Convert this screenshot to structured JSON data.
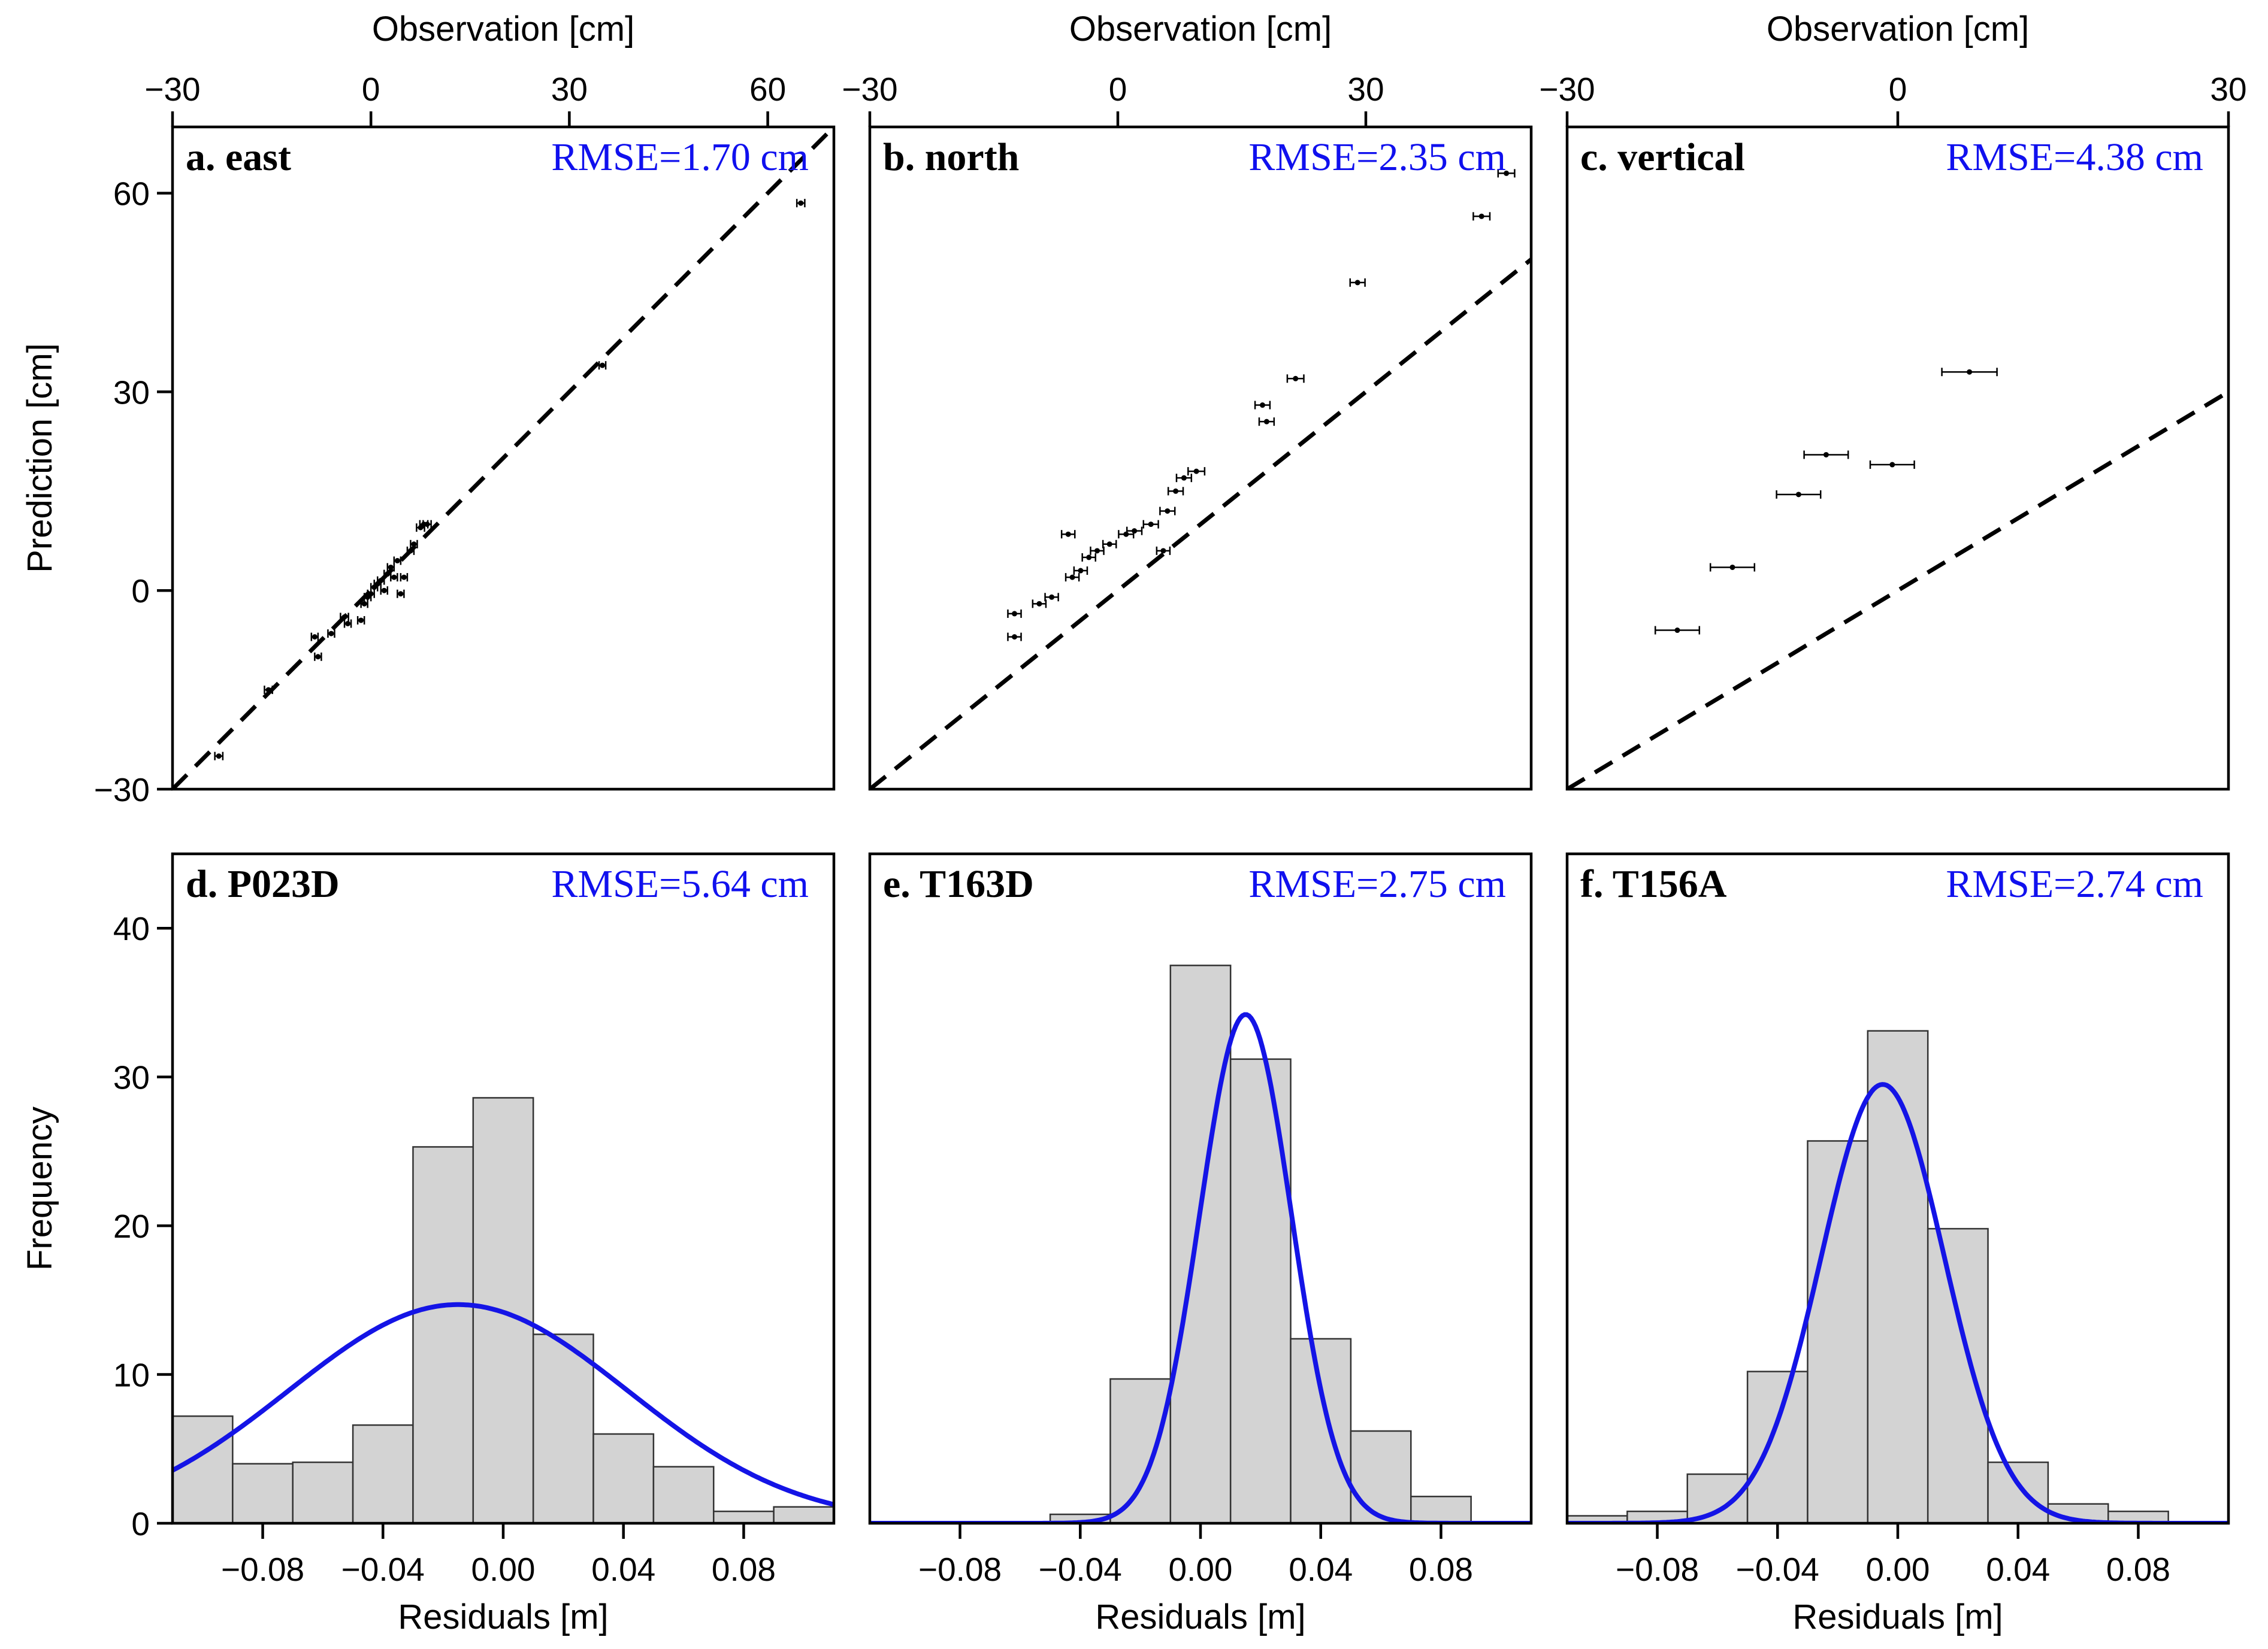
{
  "colors": {
    "fit": "#1414e6",
    "bar_fill": "#d3d3d3",
    "bar_stroke": "#333333",
    "axis": "#000000"
  },
  "chart_data": [
    {
      "id": "a",
      "type": "scatter",
      "title": "a. east",
      "rmse": "RMSE=1.70 cm",
      "xlabel": "Observation [cm]",
      "ylabel": "Prediction [cm]",
      "xlim": [
        -30,
        70
      ],
      "ylim": [
        -30,
        70
      ],
      "xticks": [
        -30,
        0,
        30,
        60
      ],
      "xtick_labels": [
        "−30",
        "0",
        "30",
        "60"
      ],
      "yticks": [
        -30,
        0,
        30,
        60
      ],
      "ytick_labels": [
        "−30",
        "0",
        "30",
        "60"
      ],
      "reference_line": "1:1 dashed",
      "points": [
        {
          "x": 65,
          "y": 58.5,
          "err": 0.6
        },
        {
          "x": 35,
          "y": 34,
          "err": 0.5
        },
        {
          "x": -23,
          "y": -25,
          "err": 0.6
        },
        {
          "x": -15.5,
          "y": -15,
          "err": 0.6
        },
        {
          "x": -8.5,
          "y": -7,
          "err": 0.5
        },
        {
          "x": -8,
          "y": -10,
          "err": 0.5
        },
        {
          "x": -6,
          "y": -6.5,
          "err": 0.5
        },
        {
          "x": -4,
          "y": -4,
          "err": 0.6
        },
        {
          "x": -3.5,
          "y": -5,
          "err": 0.5
        },
        {
          "x": -1.5,
          "y": -4.5,
          "err": 0.5
        },
        {
          "x": -1,
          "y": -2,
          "err": 0.5
        },
        {
          "x": -0.5,
          "y": -1,
          "err": 0.5
        },
        {
          "x": 0,
          "y": -0.5,
          "err": 0.5
        },
        {
          "x": 0.5,
          "y": 0.5,
          "err": 0.5
        },
        {
          "x": 1,
          "y": 1,
          "err": 0.5
        },
        {
          "x": 1.5,
          "y": 1.5,
          "err": 0.5
        },
        {
          "x": 2,
          "y": 0,
          "err": 0.5
        },
        {
          "x": 2.5,
          "y": 2.5,
          "err": 0.5
        },
        {
          "x": 3,
          "y": 3.5,
          "err": 0.5
        },
        {
          "x": 3.5,
          "y": 2,
          "err": 0.5
        },
        {
          "x": 4,
          "y": 4.5,
          "err": 0.5
        },
        {
          "x": 4.5,
          "y": -0.5,
          "err": 0.5
        },
        {
          "x": 5,
          "y": 2,
          "err": 0.5
        },
        {
          "x": 6,
          "y": 6,
          "err": 0.5
        },
        {
          "x": 6.5,
          "y": 7,
          "err": 0.5
        },
        {
          "x": 7.5,
          "y": 9.5,
          "err": 0.6
        },
        {
          "x": 8,
          "y": 10,
          "err": 0.6
        },
        {
          "x": 8.5,
          "y": 10,
          "err": 0.6
        }
      ]
    },
    {
      "id": "b",
      "type": "scatter",
      "title": "b. north",
      "rmse": "RMSE=2.35 cm",
      "xlabel": "Observation [cm]",
      "ylabel": "",
      "xlim": [
        -30,
        50
      ],
      "ylim": [
        -30,
        70
      ],
      "xticks": [
        -30,
        0,
        30
      ],
      "xtick_labels": [
        "−30",
        "0",
        "30"
      ],
      "yticks": [],
      "ytick_labels": [],
      "reference_line": "1:1 dashed",
      "points": [
        {
          "x": 47,
          "y": 63,
          "err": 1.0
        },
        {
          "x": 44,
          "y": 56.5,
          "err": 1.0
        },
        {
          "x": 29,
          "y": 46.5,
          "err": 0.9
        },
        {
          "x": 21.5,
          "y": 32,
          "err": 1.0
        },
        {
          "x": 17.5,
          "y": 28,
          "err": 0.9
        },
        {
          "x": 18,
          "y": 25.5,
          "err": 0.9
        },
        {
          "x": 9.5,
          "y": 18,
          "err": 1.0
        },
        {
          "x": 8,
          "y": 17,
          "err": 0.9
        },
        {
          "x": 7,
          "y": 15,
          "err": 0.9
        },
        {
          "x": 6,
          "y": 12,
          "err": 0.9
        },
        {
          "x": 5.5,
          "y": 6,
          "err": 0.8
        },
        {
          "x": 4,
          "y": 10,
          "err": 0.9
        },
        {
          "x": 2,
          "y": 9,
          "err": 0.9
        },
        {
          "x": 1,
          "y": 8.5,
          "err": 0.9
        },
        {
          "x": -1,
          "y": 7,
          "err": 0.8
        },
        {
          "x": -2.5,
          "y": 6,
          "err": 0.8
        },
        {
          "x": -3.5,
          "y": 5,
          "err": 0.8
        },
        {
          "x": -4.5,
          "y": 3,
          "err": 0.8
        },
        {
          "x": -5.5,
          "y": 2,
          "err": 0.8
        },
        {
          "x": -6,
          "y": 8.5,
          "err": 0.8
        },
        {
          "x": -8,
          "y": -1,
          "err": 0.8
        },
        {
          "x": -9.5,
          "y": -2,
          "err": 0.8
        },
        {
          "x": -12.5,
          "y": -3.5,
          "err": 0.8
        },
        {
          "x": -12.5,
          "y": -7,
          "err": 0.8
        }
      ]
    },
    {
      "id": "c",
      "type": "scatter",
      "title": "c. vertical",
      "rmse": "RMSE=4.38 cm",
      "xlabel": "Observation [cm]",
      "ylabel": "",
      "xlim": [
        -30,
        30
      ],
      "ylim": [
        -30,
        70
      ],
      "xticks": [
        -30,
        0,
        30
      ],
      "xtick_labels": [
        "−30",
        "0",
        "30"
      ],
      "yticks": [],
      "ytick_labels": [],
      "reference_line": "1:1 dashed",
      "points": [
        {
          "x": 6.5,
          "y": 33,
          "err": 2.5
        },
        {
          "x": -6.5,
          "y": 20.5,
          "err": 2.0
        },
        {
          "x": -0.5,
          "y": 19,
          "err": 2.0
        },
        {
          "x": -9,
          "y": 14.5,
          "err": 2.0
        },
        {
          "x": -15,
          "y": 3.5,
          "err": 2.0
        },
        {
          "x": -20,
          "y": -6,
          "err": 2.0
        }
      ]
    },
    {
      "id": "d",
      "type": "bar",
      "title": "d. P023D",
      "rmse": "RMSE=5.64 cm",
      "xlabel": "Residuals [m]",
      "ylabel": "Frequency",
      "xlim": [
        -0.11,
        0.11
      ],
      "ylim": [
        0,
        45
      ],
      "xticks": [
        -0.08,
        -0.04,
        0.0,
        0.04,
        0.08
      ],
      "xtick_labels": [
        "−0.08",
        "−0.04",
        "0.00",
        "0.04",
        "0.08"
      ],
      "yticks": [
        0,
        10,
        20,
        30,
        40
      ],
      "ytick_labels": [
        "0",
        "10",
        "20",
        "30",
        "40"
      ],
      "bin_edges": [
        -0.11,
        -0.09,
        -0.07,
        -0.05,
        -0.03,
        -0.01,
        0.01,
        0.03,
        0.05,
        0.07,
        0.09,
        0.11
      ],
      "values": [
        7.2,
        4.0,
        4.1,
        6.6,
        25.3,
        28.6,
        12.7,
        6.0,
        3.8,
        0.8,
        1.1
      ],
      "fit": {
        "mean": -0.015,
        "sd": 0.0564,
        "peak": 14.7
      }
    },
    {
      "id": "e",
      "type": "bar",
      "title": "e. T163D",
      "rmse": "RMSE=2.75 cm",
      "xlabel": "Residuals [m]",
      "ylabel": "",
      "xlim": [
        -0.11,
        0.11
      ],
      "ylim": [
        0,
        45
      ],
      "xticks": [
        -0.08,
        -0.04,
        0.0,
        0.04,
        0.08
      ],
      "xtick_labels": [
        "−0.08",
        "−0.04",
        "0.00",
        "0.04",
        "0.08"
      ],
      "yticks": [],
      "ytick_labels": [],
      "bin_edges": [
        -0.05,
        -0.03,
        -0.01,
        0.01,
        0.03,
        0.05,
        0.07,
        0.09
      ],
      "values": [
        0.6,
        9.7,
        37.5,
        31.2,
        12.4,
        6.2,
        1.8
      ],
      "fit": {
        "mean": 0.015,
        "sd": 0.0153,
        "peak": 34.2
      }
    },
    {
      "id": "f",
      "type": "bar",
      "title": "f. T156A",
      "rmse": "RMSE=2.74 cm",
      "xlabel": "Residuals [m]",
      "ylabel": "",
      "xlim": [
        -0.11,
        0.11
      ],
      "ylim": [
        0,
        45
      ],
      "xticks": [
        -0.08,
        -0.04,
        0.0,
        0.04,
        0.08
      ],
      "xtick_labels": [
        "−0.08",
        "−0.04",
        "0.00",
        "0.04",
        "0.08"
      ],
      "yticks": [],
      "ytick_labels": [],
      "bin_edges": [
        -0.11,
        -0.09,
        -0.07,
        -0.05,
        -0.03,
        -0.01,
        0.01,
        0.03,
        0.05,
        0.07,
        0.09
      ],
      "values": [
        0.5,
        0.8,
        3.3,
        10.2,
        25.7,
        33.1,
        19.8,
        4.1,
        1.3,
        0.8
      ],
      "fit": {
        "mean": -0.005,
        "sd": 0.0205,
        "peak": 29.5
      }
    }
  ]
}
